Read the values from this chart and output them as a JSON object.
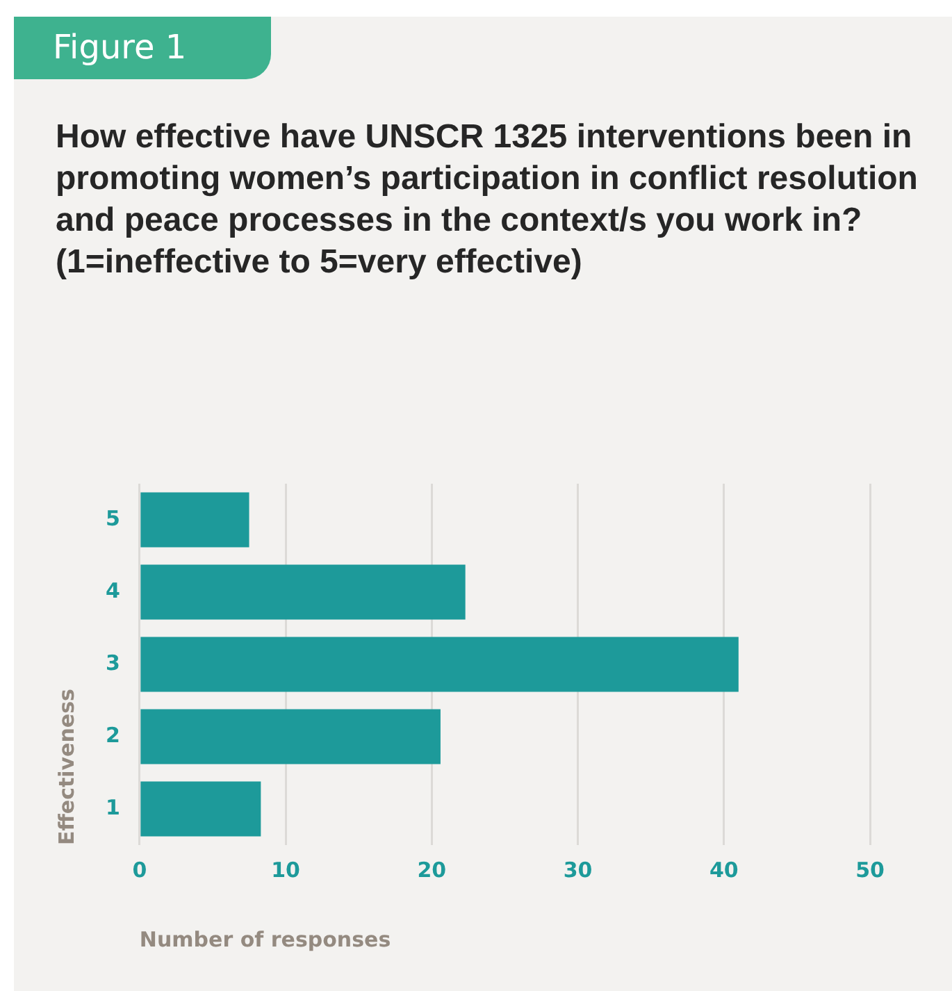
{
  "chart_data": {
    "type": "bar",
    "orientation": "horizontal",
    "title": "How effective have UNSCR 1325 interventions been in promoting women’s participation in conflict resolution and peace processes in the context/s you work in? (1=ineffective to 5=very effective)",
    "annotations": [
      "Figure 1"
    ],
    "xlabel": "Number of responses",
    "ylabel": "Effectiveness",
    "categories": [
      "5",
      "4",
      "3",
      "2",
      "1"
    ],
    "values": [
      7.5,
      22.3,
      41,
      20.6,
      8.3
    ],
    "color": "#1d9a9a",
    "xlim": [
      0,
      50
    ],
    "xticks": [
      0,
      10,
      20,
      30,
      40,
      50
    ],
    "grid": "x",
    "legend": false
  }
}
